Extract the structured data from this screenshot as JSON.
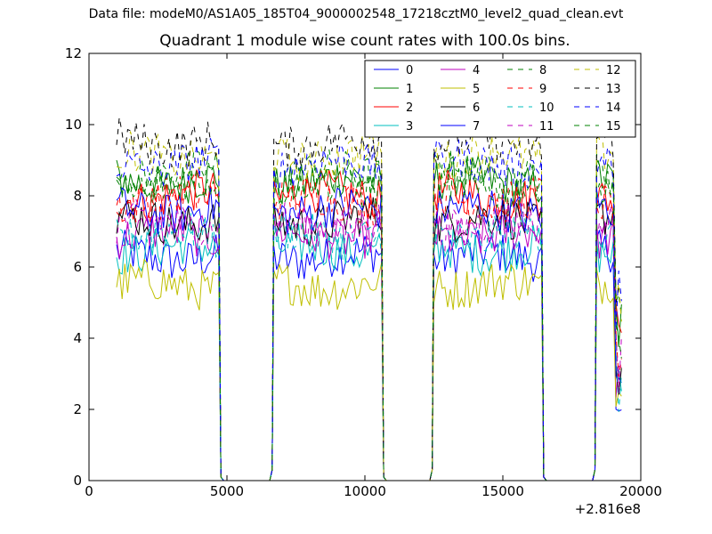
{
  "figure": {
    "suptitle": "Data file: modeM0/AS1A05_185T04_9000002548_17218cztM0_level2_quad_clean.evt",
    "x_offset_label": "+2.816e8"
  },
  "chart_data": {
    "type": "line",
    "title": "Quadrant 1 module wise count rates with 100.0s bins.",
    "xlabel": "",
    "ylabel": "",
    "xlim": [
      0,
      20000
    ],
    "ylim": [
      0,
      12
    ],
    "x_offset": "+2.816e8",
    "x_ticks": [
      0,
      5000,
      10000,
      15000,
      20000
    ],
    "x_tick_labels": [
      "0",
      "5000",
      "10000",
      "15000",
      "20000"
    ],
    "y_ticks": [
      0,
      2,
      4,
      6,
      8,
      10,
      12
    ],
    "y_tick_labels": [
      "0",
      "2",
      "4",
      "6",
      "8",
      "10",
      "12"
    ],
    "grid": false,
    "legend_position": "top-right",
    "legend_columns": 4,
    "segments": [
      [
        1000,
        4700
      ],
      [
        6700,
        10600
      ],
      [
        12500,
        16400
      ],
      [
        18400,
        19300
      ]
    ],
    "gap_value": 0,
    "series": [
      {
        "name": "0",
        "color": "#0000ff",
        "dash": "solid",
        "mean": 6.3
      },
      {
        "name": "1",
        "color": "#008000",
        "dash": "solid",
        "mean": 8.4
      },
      {
        "name": "2",
        "color": "#ff0000",
        "dash": "solid",
        "mean": 8.0
      },
      {
        "name": "3",
        "color": "#00bfbf",
        "dash": "solid",
        "mean": 6.5
      },
      {
        "name": "4",
        "color": "#bf00bf",
        "dash": "solid",
        "mean": 6.9
      },
      {
        "name": "5",
        "color": "#bfbf00",
        "dash": "solid",
        "mean": 5.5
      },
      {
        "name": "6",
        "color": "#000000",
        "dash": "solid",
        "mean": 7.3
      },
      {
        "name": "7",
        "color": "#0000ff",
        "dash": "solid",
        "mean": 7.6
      },
      {
        "name": "8",
        "color": "#008000",
        "dash": "dashed",
        "mean": 8.6
      },
      {
        "name": "9",
        "color": "#ff0000",
        "dash": "dashed",
        "mean": 7.9
      },
      {
        "name": "10",
        "color": "#00bfbf",
        "dash": "dashed",
        "mean": 6.9
      },
      {
        "name": "11",
        "color": "#bf00bf",
        "dash": "dashed",
        "mean": 7.2
      },
      {
        "name": "12",
        "color": "#bfbf00",
        "dash": "dashed",
        "mean": 9.1
      },
      {
        "name": "13",
        "color": "#000000",
        "dash": "dashed",
        "mean": 9.5
      },
      {
        "name": "14",
        "color": "#0000ff",
        "dash": "dashed",
        "mean": 8.9
      },
      {
        "name": "15",
        "color": "#008000",
        "dash": "dashed",
        "mean": 8.3
      }
    ]
  }
}
